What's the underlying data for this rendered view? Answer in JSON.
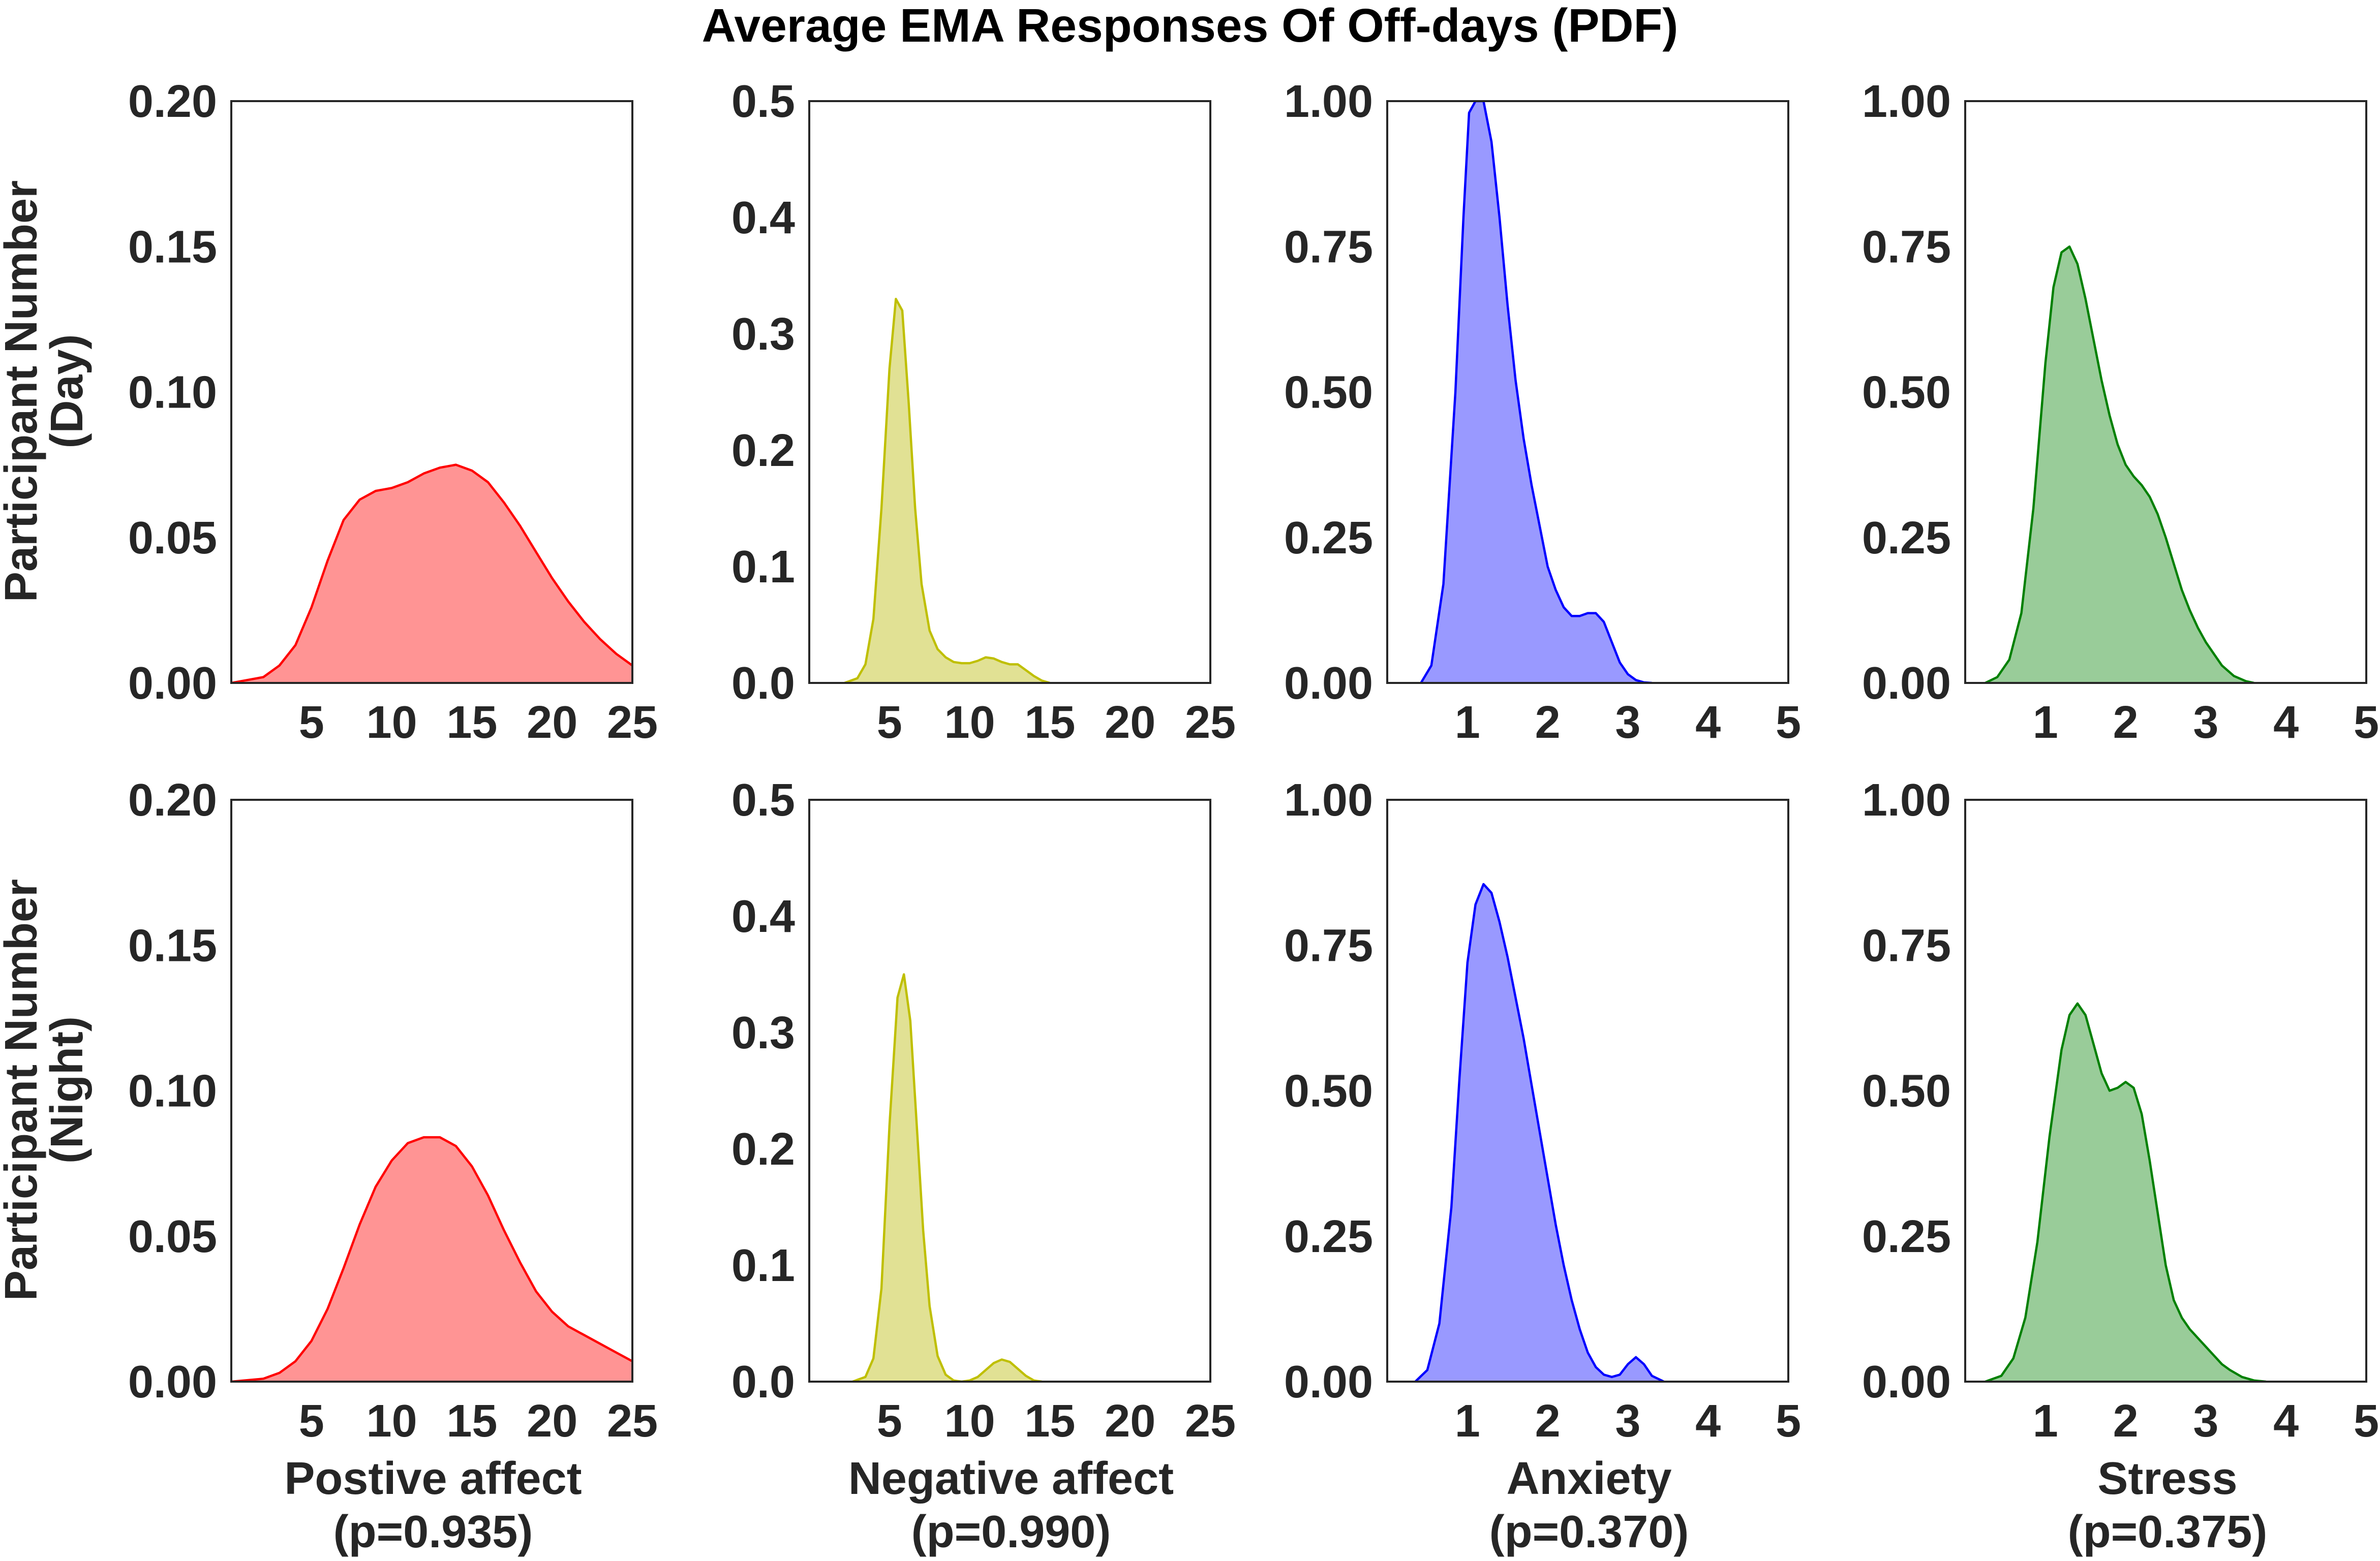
{
  "title": "Average EMA Responses Of Off-days (PDF)",
  "row_labels": [
    [
      "Participant Number",
      "(Day)"
    ],
    [
      "Participant Number",
      "(Night)"
    ]
  ],
  "column_labels": [
    [
      "Postive affect",
      "(p=0.935)"
    ],
    [
      "Negative affect",
      "(p=0.990)"
    ],
    [
      "Anxiety",
      "(p=0.370)"
    ],
    [
      "Stress",
      "(p=0.375)"
    ]
  ],
  "chart_data": [
    {
      "type": "area",
      "panel": "day-positive-affect",
      "row": 0,
      "col": 0,
      "color": "#ff0000",
      "fill": "#ff9494",
      "xlim": [
        0,
        25
      ],
      "ylim": [
        0,
        0.2
      ],
      "xticks": [
        "5",
        "10",
        "15",
        "20",
        "25"
      ],
      "xtick_values": [
        5,
        10,
        15,
        20,
        25
      ],
      "yticks": [
        "0.00",
        "0.05",
        "0.10",
        "0.15",
        "0.20"
      ],
      "ytick_values": [
        0,
        0.05,
        0.1,
        0.15,
        0.2
      ],
      "x": [
        0,
        2,
        3,
        4,
        5,
        6,
        7,
        8,
        9,
        10,
        11,
        12,
        13,
        14,
        15,
        16,
        17,
        18,
        19,
        20,
        21,
        22,
        23,
        24,
        25
      ],
      "y": [
        0,
        0.002,
        0.006,
        0.013,
        0.026,
        0.042,
        0.056,
        0.063,
        0.066,
        0.067,
        0.069,
        0.072,
        0.074,
        0.075,
        0.073,
        0.069,
        0.062,
        0.054,
        0.045,
        0.036,
        0.028,
        0.021,
        0.015,
        0.01,
        0.006
      ]
    },
    {
      "type": "area",
      "panel": "day-negative-affect",
      "row": 0,
      "col": 1,
      "color": "#bfbf00",
      "fill": "#e1e194",
      "xlim": [
        0,
        25
      ],
      "ylim": [
        0,
        0.5
      ],
      "xticks": [
        "5",
        "10",
        "15",
        "20",
        "25"
      ],
      "xtick_values": [
        5,
        10,
        15,
        20,
        25
      ],
      "yticks": [
        "0.0",
        "0.1",
        "0.2",
        "0.3",
        "0.4",
        "0.5"
      ],
      "ytick_values": [
        0,
        0.1,
        0.2,
        0.3,
        0.4,
        0.5
      ],
      "x": [
        2.2,
        3,
        3.5,
        4,
        4.5,
        5,
        5.4,
        5.8,
        6.2,
        6.6,
        7,
        7.5,
        8,
        8.5,
        9,
        9.5,
        10,
        10.5,
        11,
        11.5,
        12,
        12.5,
        13,
        13.5,
        14,
        14.5,
        15
      ],
      "y": [
        0,
        0.004,
        0.016,
        0.055,
        0.15,
        0.27,
        0.33,
        0.32,
        0.24,
        0.15,
        0.085,
        0.045,
        0.029,
        0.022,
        0.018,
        0.017,
        0.017,
        0.019,
        0.022,
        0.021,
        0.018,
        0.016,
        0.016,
        0.011,
        0.006,
        0.002,
        0
      ]
    },
    {
      "type": "area",
      "panel": "day-anxiety",
      "row": 0,
      "col": 2,
      "color": "#0000ff",
      "fill": "#9999ff",
      "xlim": [
        0,
        5
      ],
      "ylim": [
        0,
        1.0
      ],
      "xticks": [
        "1",
        "2",
        "3",
        "4",
        "5"
      ],
      "xtick_values": [
        1,
        2,
        3,
        4,
        5
      ],
      "yticks": [
        "0.00",
        "0.25",
        "0.50",
        "0.75",
        "1.00"
      ],
      "ytick_values": [
        0,
        0.25,
        0.5,
        0.75,
        1.0
      ],
      "x": [
        0.42,
        0.55,
        0.7,
        0.85,
        0.95,
        1.02,
        1.1,
        1.2,
        1.3,
        1.4,
        1.5,
        1.6,
        1.7,
        1.8,
        1.9,
        2.0,
        2.1,
        2.2,
        2.3,
        2.4,
        2.5,
        2.6,
        2.7,
        2.8,
        2.9,
        3.0,
        3.1,
        3.2,
        3.3
      ],
      "y": [
        0,
        0.03,
        0.17,
        0.5,
        0.8,
        0.98,
        1.0,
        1.0,
        0.93,
        0.8,
        0.65,
        0.52,
        0.42,
        0.34,
        0.27,
        0.2,
        0.16,
        0.13,
        0.115,
        0.115,
        0.12,
        0.12,
        0.105,
        0.07,
        0.035,
        0.015,
        0.005,
        0.001,
        0
      ]
    },
    {
      "type": "area",
      "panel": "day-stress",
      "row": 0,
      "col": 3,
      "color": "#008000",
      "fill": "#99cc99",
      "xlim": [
        0,
        5
      ],
      "ylim": [
        0,
        1.0
      ],
      "xticks": [
        "1",
        "2",
        "3",
        "4",
        "5"
      ],
      "xtick_values": [
        1,
        2,
        3,
        4,
        5
      ],
      "yticks": [
        "0.00",
        "0.25",
        "0.50",
        "0.75",
        "1.00"
      ],
      "ytick_values": [
        0,
        0.25,
        0.5,
        0.75,
        1.0
      ],
      "x": [
        0.25,
        0.4,
        0.55,
        0.7,
        0.85,
        1.0,
        1.1,
        1.2,
        1.3,
        1.4,
        1.5,
        1.6,
        1.7,
        1.8,
        1.9,
        2.0,
        2.1,
        2.2,
        2.3,
        2.4,
        2.5,
        2.6,
        2.7,
        2.8,
        2.9,
        3.0,
        3.1,
        3.2,
        3.35,
        3.5,
        3.6
      ],
      "y": [
        0,
        0.01,
        0.04,
        0.12,
        0.3,
        0.55,
        0.68,
        0.74,
        0.75,
        0.72,
        0.66,
        0.59,
        0.52,
        0.46,
        0.41,
        0.375,
        0.355,
        0.34,
        0.32,
        0.29,
        0.25,
        0.205,
        0.16,
        0.125,
        0.095,
        0.07,
        0.05,
        0.03,
        0.012,
        0.003,
        0
      ]
    },
    {
      "type": "area",
      "panel": "night-positive-affect",
      "row": 1,
      "col": 0,
      "color": "#ff0000",
      "fill": "#ff9494",
      "xlim": [
        0,
        25
      ],
      "ylim": [
        0,
        0.2
      ],
      "xticks": [
        "5",
        "10",
        "15",
        "20",
        "25"
      ],
      "xtick_values": [
        5,
        10,
        15,
        20,
        25
      ],
      "yticks": [
        "0.00",
        "0.05",
        "0.10",
        "0.15",
        "0.20"
      ],
      "ytick_values": [
        0,
        0.05,
        0.1,
        0.15,
        0.2
      ],
      "x": [
        0,
        2,
        3,
        4,
        5,
        6,
        7,
        8,
        9,
        10,
        11,
        12,
        13,
        14,
        15,
        16,
        17,
        18,
        19,
        20,
        21,
        22,
        23,
        24,
        25
      ],
      "y": [
        0,
        0.001,
        0.003,
        0.007,
        0.014,
        0.025,
        0.039,
        0.054,
        0.067,
        0.076,
        0.082,
        0.084,
        0.084,
        0.081,
        0.074,
        0.064,
        0.052,
        0.041,
        0.031,
        0.024,
        0.019,
        0.016,
        0.013,
        0.01,
        0.007
      ]
    },
    {
      "type": "area",
      "panel": "night-negative-affect",
      "row": 1,
      "col": 1,
      "color": "#bfbf00",
      "fill": "#e1e194",
      "xlim": [
        0,
        25
      ],
      "ylim": [
        0,
        0.5
      ],
      "xticks": [
        "5",
        "10",
        "15",
        "20",
        "25"
      ],
      "xtick_values": [
        5,
        10,
        15,
        20,
        25
      ],
      "yticks": [
        "0.0",
        "0.1",
        "0.2",
        "0.3",
        "0.4",
        "0.5"
      ],
      "ytick_values": [
        0,
        0.1,
        0.2,
        0.3,
        0.4,
        0.5
      ],
      "x": [
        2.7,
        3.5,
        4,
        4.5,
        5,
        5.5,
        5.9,
        6.3,
        6.7,
        7.1,
        7.5,
        8,
        8.5,
        9,
        9.5,
        10,
        10.5,
        11,
        11.5,
        12,
        12.5,
        13,
        13.5,
        14,
        14.5
      ],
      "y": [
        0,
        0.004,
        0.02,
        0.08,
        0.22,
        0.33,
        0.35,
        0.31,
        0.22,
        0.13,
        0.065,
        0.022,
        0.006,
        0.001,
        0,
        0.001,
        0.004,
        0.01,
        0.016,
        0.019,
        0.017,
        0.011,
        0.005,
        0.001,
        0
      ]
    },
    {
      "type": "area",
      "panel": "night-anxiety",
      "row": 1,
      "col": 2,
      "color": "#0000ff",
      "fill": "#9999ff",
      "xlim": [
        0,
        5
      ],
      "ylim": [
        0,
        1.0
      ],
      "xticks": [
        "1",
        "2",
        "3",
        "4",
        "5"
      ],
      "xtick_values": [
        1,
        2,
        3,
        4,
        5
      ],
      "yticks": [
        "0.00",
        "0.25",
        "0.50",
        "0.75",
        "1.00"
      ],
      "ytick_values": [
        0,
        0.25,
        0.5,
        0.75,
        1.0
      ],
      "x": [
        0.35,
        0.5,
        0.65,
        0.8,
        0.9,
        1.0,
        1.1,
        1.2,
        1.3,
        1.4,
        1.5,
        1.6,
        1.7,
        1.8,
        1.9,
        2.0,
        2.1,
        2.2,
        2.3,
        2.4,
        2.5,
        2.6,
        2.7,
        2.8,
        2.9,
        3.0,
        3.1,
        3.2,
        3.3,
        3.45
      ],
      "y": [
        0,
        0.02,
        0.1,
        0.3,
        0.52,
        0.72,
        0.82,
        0.855,
        0.84,
        0.79,
        0.73,
        0.66,
        0.59,
        0.51,
        0.43,
        0.35,
        0.27,
        0.2,
        0.14,
        0.09,
        0.05,
        0.025,
        0.012,
        0.008,
        0.012,
        0.03,
        0.042,
        0.03,
        0.01,
        0
      ]
    },
    {
      "type": "area",
      "panel": "night-stress",
      "row": 1,
      "col": 3,
      "color": "#008000",
      "fill": "#99cc99",
      "xlim": [
        0,
        5
      ],
      "ylim": [
        0,
        1.0
      ],
      "xticks": [
        "1",
        "2",
        "3",
        "4",
        "5"
      ],
      "xtick_values": [
        1,
        2,
        3,
        4,
        5
      ],
      "yticks": [
        "0.00",
        "0.25",
        "0.50",
        "0.75",
        "1.00"
      ],
      "ytick_values": [
        0,
        0.25,
        0.5,
        0.75,
        1.0
      ],
      "x": [
        0.25,
        0.45,
        0.6,
        0.75,
        0.9,
        1.05,
        1.2,
        1.3,
        1.4,
        1.5,
        1.6,
        1.7,
        1.8,
        1.9,
        2.0,
        2.1,
        2.2,
        2.3,
        2.4,
        2.5,
        2.6,
        2.7,
        2.8,
        2.9,
        3.0,
        3.1,
        3.2,
        3.3,
        3.45,
        3.6,
        3.75
      ],
      "y": [
        0,
        0.01,
        0.04,
        0.11,
        0.24,
        0.42,
        0.57,
        0.63,
        0.65,
        0.63,
        0.58,
        0.53,
        0.5,
        0.505,
        0.515,
        0.505,
        0.46,
        0.38,
        0.29,
        0.2,
        0.14,
        0.11,
        0.09,
        0.075,
        0.06,
        0.045,
        0.03,
        0.02,
        0.008,
        0.002,
        0
      ]
    }
  ]
}
